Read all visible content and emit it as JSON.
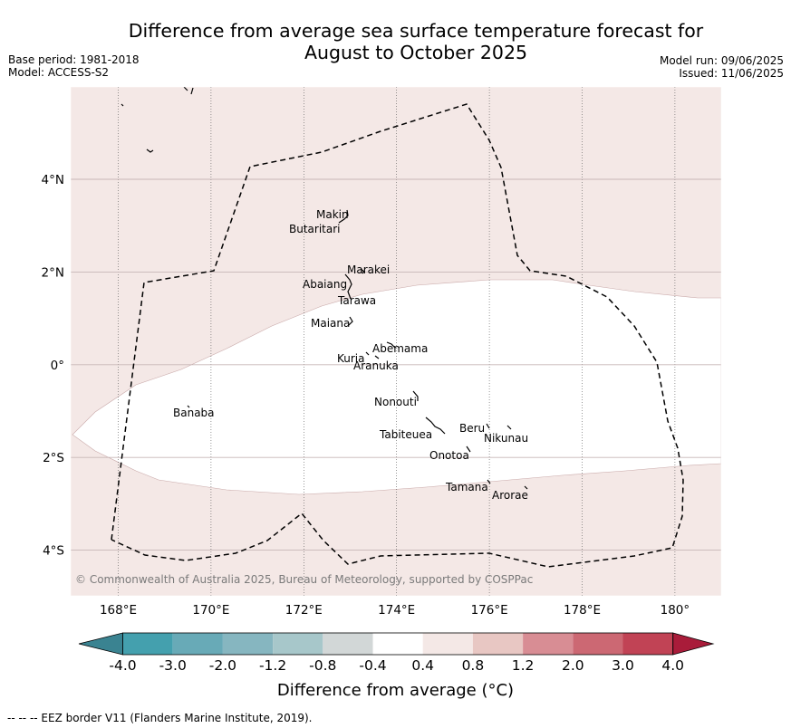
{
  "title_line1": "Difference from average sea surface temperature forecast for",
  "title_line2": "August to October 2025",
  "base_period": "Base period: 1981-2018",
  "model": "Model: ACCESS-S2",
  "model_run": "Model run: 09/06/2025",
  "issued": "Issued: 11/06/2025",
  "copyright": "© Commonwealth of Australia 2025, Bureau of Meteorology, supported by COSPPac",
  "colors": {
    "land_fill": "#f4e8e6",
    "neutral_band": "#ffffff",
    "grid": "#c7b6b6",
    "eez_border": "#000000"
  },
  "map": {
    "lon_range": [
      167.0,
      181.0
    ],
    "lat_range": [
      -5.0,
      6.0
    ],
    "lon_ticks": [
      {
        "value": 168,
        "label": "168°E"
      },
      {
        "value": 170,
        "label": "170°E"
      },
      {
        "value": 172,
        "label": "172°E"
      },
      {
        "value": 174,
        "label": "174°E"
      },
      {
        "value": 176,
        "label": "176°E"
      },
      {
        "value": 178,
        "label": "178°E"
      },
      {
        "value": 180,
        "label": "180°"
      }
    ],
    "lat_ticks": [
      {
        "value": 4,
        "label": "4°N"
      },
      {
        "value": 2,
        "label": "2°N"
      },
      {
        "value": 0,
        "label": "0°"
      },
      {
        "value": -2,
        "label": "2°S"
      },
      {
        "value": -4,
        "label": "4°S"
      }
    ],
    "islands": [
      {
        "name": "Makin",
        "lon": 172.9,
        "lat": 3.2
      },
      {
        "name": "Butaritari",
        "lon": 172.6,
        "lat": 2.9
      },
      {
        "name": "Marakei",
        "lon": 173.3,
        "lat": 2.0
      },
      {
        "name": "Abaiang",
        "lon": 172.9,
        "lat": 1.8
      },
      {
        "name": "Tarawa",
        "lon": 172.9,
        "lat": 1.4
      },
      {
        "name": "Maiana",
        "lon": 172.9,
        "lat": 0.9
      },
      {
        "name": "Abemama",
        "lon": 173.9,
        "lat": 0.4
      },
      {
        "name": "Kuria",
        "lon": 173.4,
        "lat": 0.2
      },
      {
        "name": "Aranuka",
        "lon": 173.6,
        "lat": 0.2
      },
      {
        "name": "Banaba",
        "lon": 169.5,
        "lat": -0.9
      },
      {
        "name": "Nonouti",
        "lon": 174.4,
        "lat": -0.7
      },
      {
        "name": "Tabiteuea",
        "lon": 174.8,
        "lat": -1.3
      },
      {
        "name": "Beru",
        "lon": 176.0,
        "lat": -1.3
      },
      {
        "name": "Nikunau",
        "lon": 176.5,
        "lat": -1.3
      },
      {
        "name": "Onotoa",
        "lon": 175.6,
        "lat": -1.8
      },
      {
        "name": "Tamana",
        "lon": 176.0,
        "lat": -2.5
      },
      {
        "name": "Arorae",
        "lon": 176.8,
        "lat": -2.6
      }
    ]
  },
  "colorbar": {
    "title": "Difference from average (°C)",
    "boundaries": [
      "-4.0",
      "-3.0",
      "-2.0",
      "-1.2",
      "-0.8",
      "-0.4",
      "0.4",
      "0.8",
      "1.2",
      "2.0",
      "3.0",
      "4.0"
    ],
    "colors": [
      "#44a0ae",
      "#68aab7",
      "#86b6c0",
      "#a7c7ca",
      "#d2d7d7",
      "#ffffff",
      "#f4e8e6",
      "#e8c7c3",
      "#d88d94",
      "#cc6873",
      "#c14355"
    ],
    "under_color": "#3a8391",
    "over_color": "#a91c3a"
  },
  "footnote": "-- -- -- EEZ border V11 (Flanders Marine Institute, 2019)."
}
